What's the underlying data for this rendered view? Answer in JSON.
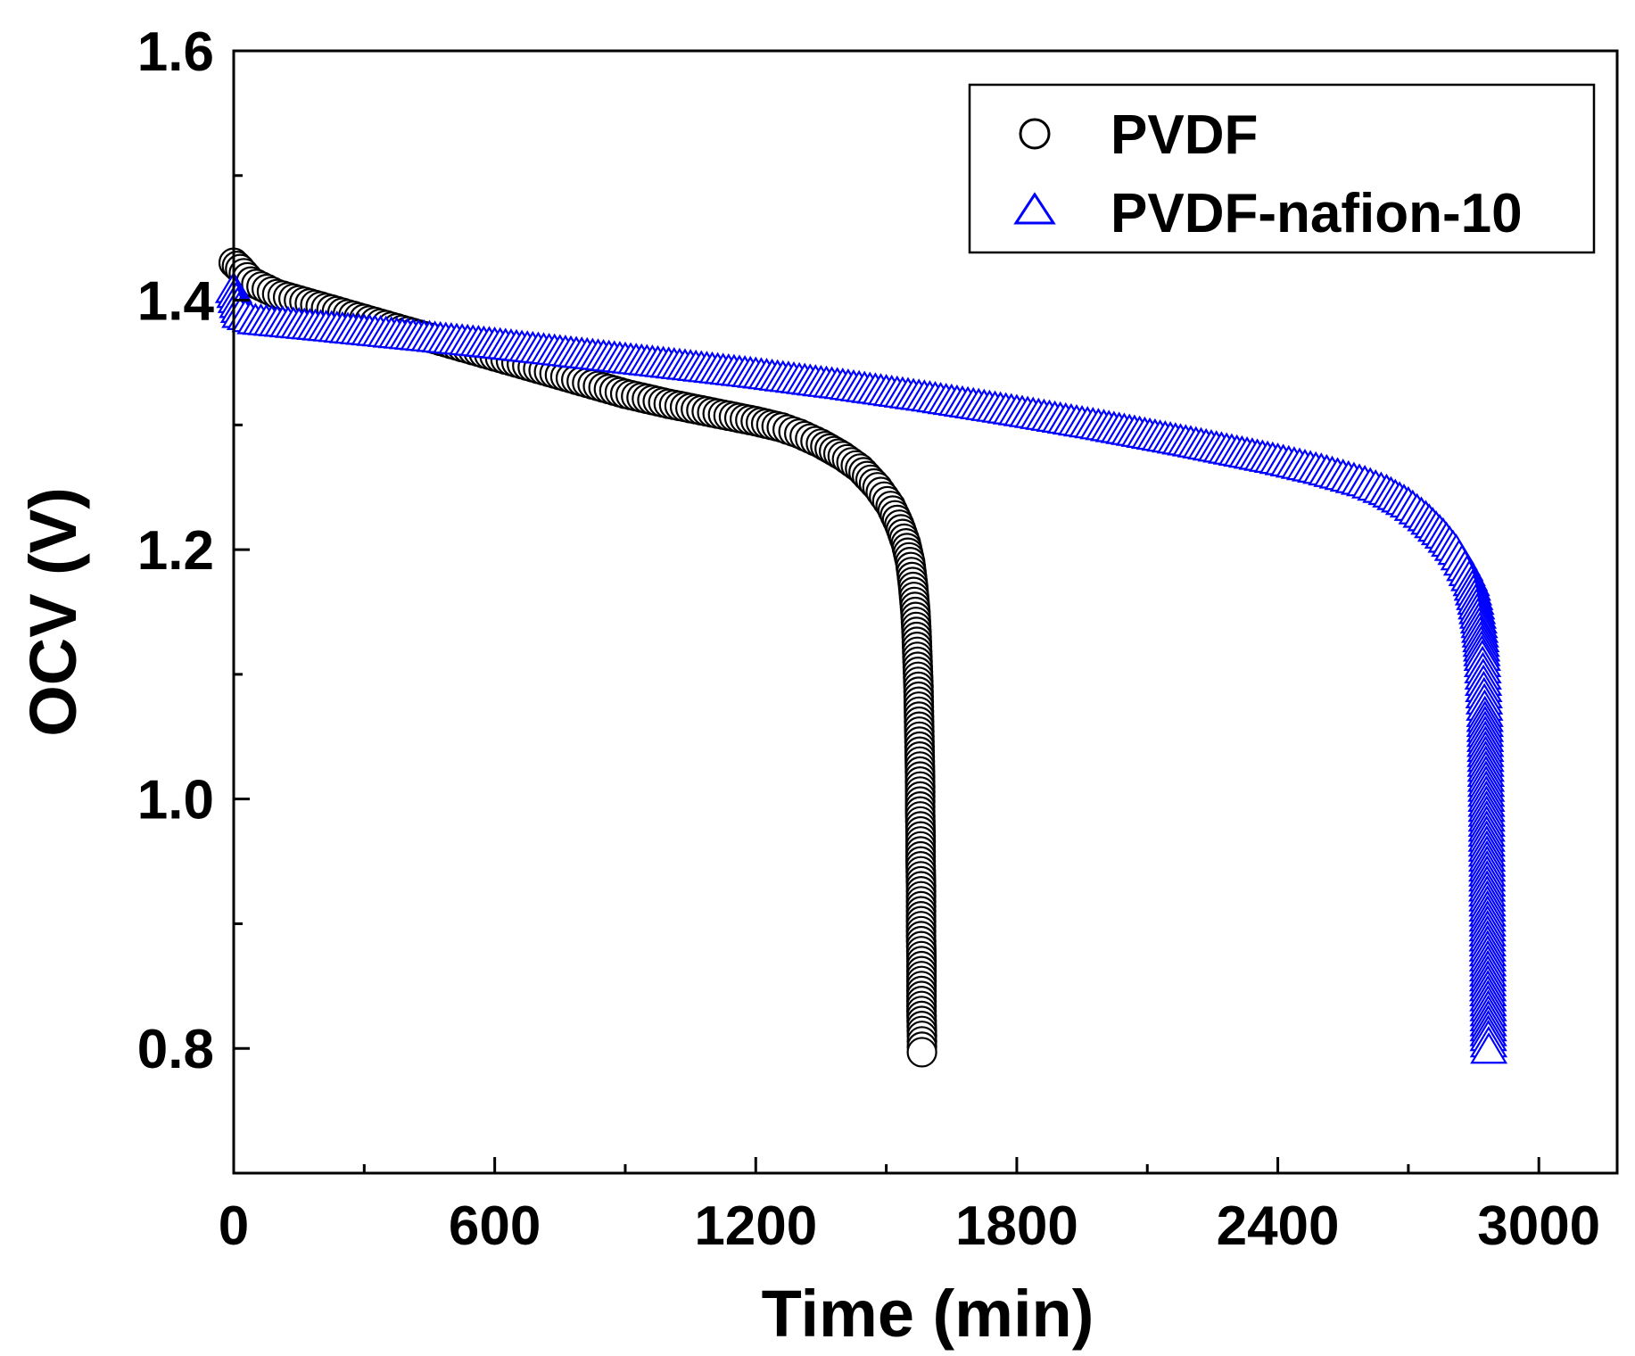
{
  "chart_data": {
    "type": "scatter",
    "title": "",
    "xlabel": "Time (min)",
    "ylabel": "OCV (V)",
    "xlim": [
      0,
      3180
    ],
    "ylim": [
      0.7,
      1.6
    ],
    "xticks": [
      "0",
      "600",
      "1200",
      "1800",
      "2400",
      "3000"
    ],
    "yticks": [
      "0.8",
      "1.0",
      "1.2",
      "1.4",
      "1.6"
    ],
    "legend_position": "top-right",
    "series": [
      {
        "name": "PVDF",
        "marker": "circle",
        "color": "#000000",
        "points": [
          [
            0,
            1.43
          ],
          [
            15,
            1.425
          ],
          [
            40,
            1.415
          ],
          [
            100,
            1.405
          ],
          [
            200,
            1.395
          ],
          [
            300,
            1.385
          ],
          [
            400,
            1.375
          ],
          [
            500,
            1.365
          ],
          [
            600,
            1.355
          ],
          [
            700,
            1.345
          ],
          [
            800,
            1.335
          ],
          [
            900,
            1.325
          ],
          [
            1000,
            1.317
          ],
          [
            1100,
            1.31
          ],
          [
            1200,
            1.303
          ],
          [
            1260,
            1.298
          ],
          [
            1300,
            1.293
          ],
          [
            1350,
            1.285
          ],
          [
            1400,
            1.275
          ],
          [
            1440,
            1.265
          ],
          [
            1480,
            1.25
          ],
          [
            1510,
            1.235
          ],
          [
            1530,
            1.22
          ],
          [
            1545,
            1.205
          ],
          [
            1555,
            1.19
          ],
          [
            1562,
            1.17
          ],
          [
            1567,
            1.15
          ],
          [
            1570,
            1.13
          ],
          [
            1572,
            1.11
          ],
          [
            1574,
            1.09
          ],
          [
            1575,
            1.07
          ],
          [
            1576,
            1.05
          ],
          [
            1577,
            1.03
          ],
          [
            1578,
            1.01
          ],
          [
            1578,
            0.99
          ],
          [
            1579,
            0.97
          ],
          [
            1579,
            0.95
          ],
          [
            1580,
            0.93
          ],
          [
            1580,
            0.91
          ],
          [
            1580,
            0.89
          ],
          [
            1581,
            0.87
          ],
          [
            1581,
            0.85
          ],
          [
            1581,
            0.83
          ],
          [
            1582,
            0.81
          ],
          [
            1582,
            0.797
          ]
        ]
      },
      {
        "name": "PVDF-nafion-10",
        "marker": "triangle",
        "color": "#0000ff",
        "points": [
          [
            0,
            1.41
          ],
          [
            15,
            1.39
          ],
          [
            50,
            1.385
          ],
          [
            200,
            1.38
          ],
          [
            400,
            1.373
          ],
          [
            600,
            1.366
          ],
          [
            800,
            1.358
          ],
          [
            1000,
            1.35
          ],
          [
            1200,
            1.342
          ],
          [
            1400,
            1.333
          ],
          [
            1600,
            1.323
          ],
          [
            1800,
            1.312
          ],
          [
            2000,
            1.3
          ],
          [
            2200,
            1.287
          ],
          [
            2400,
            1.273
          ],
          [
            2500,
            1.265
          ],
          [
            2600,
            1.255
          ],
          [
            2650,
            1.248
          ],
          [
            2700,
            1.238
          ],
          [
            2740,
            1.227
          ],
          [
            2780,
            1.213
          ],
          [
            2810,
            1.2
          ],
          [
            2830,
            1.187
          ],
          [
            2845,
            1.175
          ],
          [
            2855,
            1.16
          ],
          [
            2862,
            1.145
          ],
          [
            2867,
            1.13
          ],
          [
            2870,
            1.115
          ],
          [
            2872,
            1.1
          ],
          [
            2874,
            1.085
          ],
          [
            2876,
            1.07
          ],
          [
            2877,
            1.05
          ],
          [
            2878,
            1.03
          ],
          [
            2879,
            1.01
          ],
          [
            2880,
            0.99
          ],
          [
            2880,
            0.97
          ],
          [
            2881,
            0.95
          ],
          [
            2881,
            0.93
          ],
          [
            2882,
            0.91
          ],
          [
            2882,
            0.89
          ],
          [
            2883,
            0.87
          ],
          [
            2883,
            0.85
          ],
          [
            2884,
            0.83
          ],
          [
            2884,
            0.81
          ],
          [
            2885,
            0.8
          ]
        ]
      }
    ]
  }
}
